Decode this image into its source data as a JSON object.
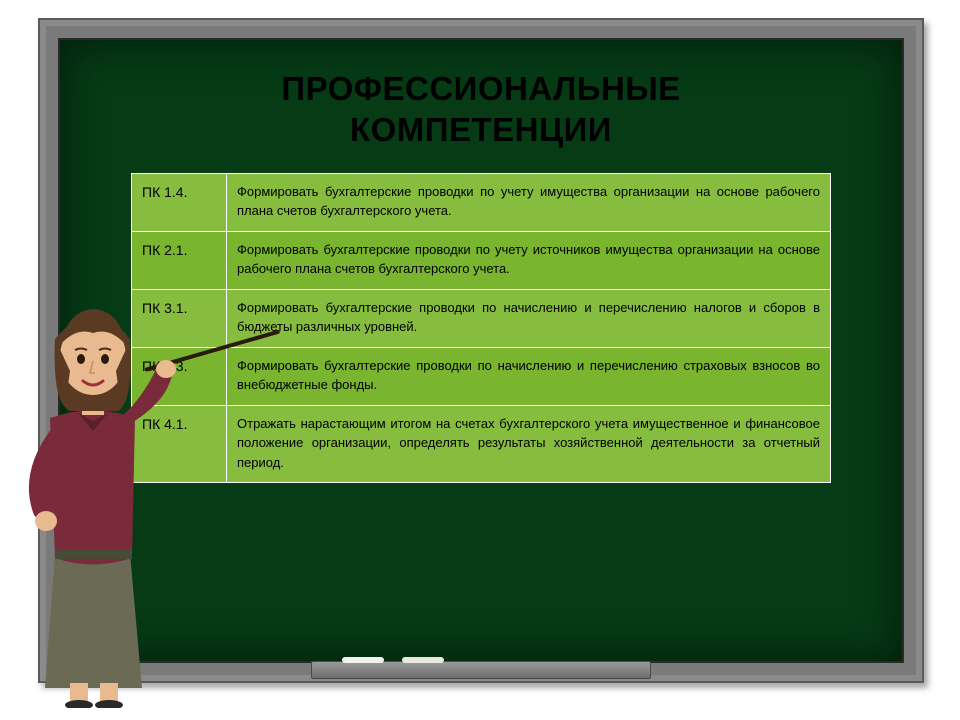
{
  "title_line1": "ПРОФЕССИОНАЛЬНЫЕ",
  "title_line2": "КОМПЕТЕНЦИИ",
  "table": {
    "row_colors": [
      "#87bd3e",
      "#79b52e",
      "#87bd3e",
      "#79b52e",
      "#87bd3e"
    ],
    "border_color": "#ffffff",
    "text_color": "#000000",
    "rows": [
      {
        "code": "ПК 1.4.",
        "desc": "Формировать бухгалтерские проводки по учету имущества организации на основе рабочего плана счетов бухгалтерского учета."
      },
      {
        "code": "ПК 2.1.",
        "desc": "Формировать бухгалтерские проводки по учету источников имущества организации на основе рабочего плана счетов бухгалтерского учета."
      },
      {
        "code": "ПК 3.1.",
        "desc": "Формировать бухгалтерские проводки по начислению и перечислению налогов и сборов в бюджеты различных уровней."
      },
      {
        "code": "ПК 3.3.",
        "desc": "Формировать бухгалтерские проводки по начислению и перечислению страховых взносов во внебюджетные фонды."
      },
      {
        "code": "ПК 4.1.",
        "desc": "Отражать нарастающим итогом на счетах бухгалтерского учета имущественное и финансовое положение организации, определять результаты хозяйственной деятельности за отчетный период."
      }
    ]
  },
  "colors": {
    "board_bg": "#063b16",
    "frame": "#7a7a7a",
    "title_color": "#000000"
  },
  "teacher": {
    "hair": "#5a3a22",
    "skin": "#e9b98f",
    "top": "#7a2a3a",
    "skirt": "#6b6b55",
    "pointer": "#2a1a0c"
  }
}
